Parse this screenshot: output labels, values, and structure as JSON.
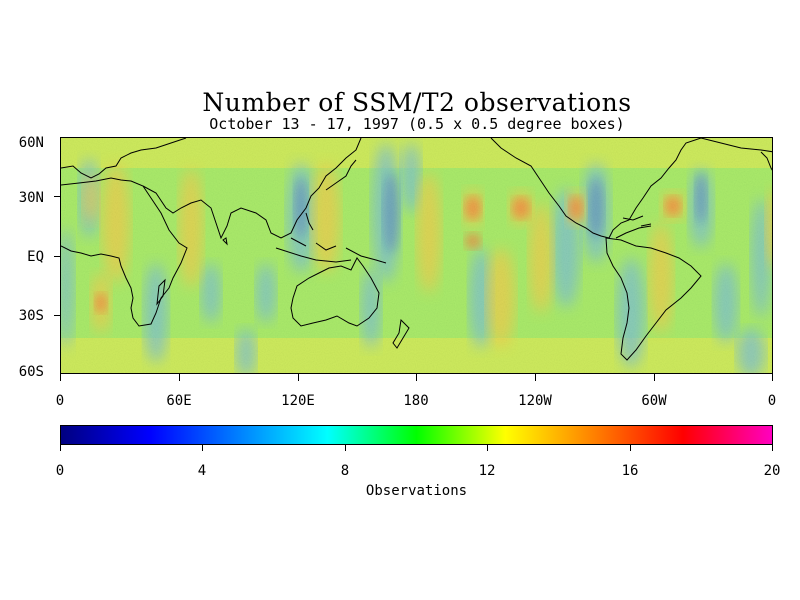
{
  "title": "Number of SSM/T2 observations",
  "subtitle": "October 13 - 17, 1997 (0.5 x 0.5 degree boxes)",
  "latitude_labels": [
    "60N",
    "30N",
    "EQ",
    "30S",
    "60S"
  ],
  "longitude_labels": [
    "0",
    "60E",
    "120E",
    "180",
    "120W",
    "60W",
    "0"
  ],
  "colorbar": {
    "title": "Observations",
    "ticks": [
      "0",
      "4",
      "8",
      "12",
      "16",
      "20"
    ],
    "range": [
      0,
      20
    ],
    "colors": [
      "#000080",
      "#0000ff",
      "#0080ff",
      "#00ffff",
      "#00ff00",
      "#ffff00",
      "#ff8000",
      "#ff0000",
      "#ff00c0"
    ]
  },
  "map": {
    "lat_range": [
      "60S",
      "60N"
    ],
    "lon_range": [
      "0",
      "360"
    ],
    "background_level": "green-yellow noisy field",
    "coastline_color": "#000000"
  }
}
